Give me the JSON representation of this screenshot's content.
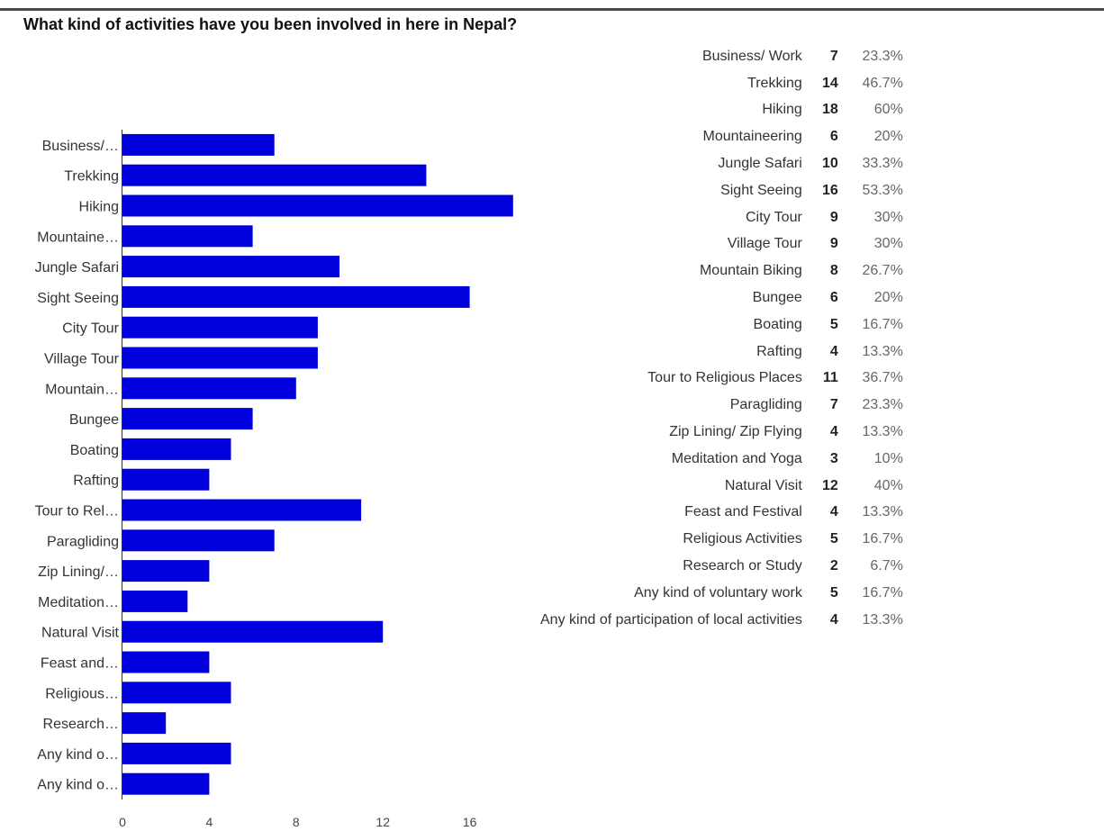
{
  "title": "What kind of activities have you been involved in here in Nepal?",
  "colors": {
    "bar": "#0000dd",
    "axis": "#333333"
  },
  "chart_data": {
    "type": "bar",
    "orientation": "horizontal",
    "title": "What kind of activities have you been involved in here in Nepal?",
    "categories": [
      "Business/…",
      "Trekking",
      "Hiking",
      "Mountaine…",
      "Jungle Safari",
      "Sight Seeing",
      "City Tour",
      "Village Tour",
      "Mountain…",
      "Bungee",
      "Boating",
      "Rafting",
      "Tour to Rel…",
      "Paragliding",
      "Zip Lining/…",
      "Meditation…",
      "Natural Visit",
      "Feast and…",
      "Religious…",
      "Research…",
      "Any kind o…",
      "Any kind o…"
    ],
    "values": [
      7,
      14,
      18,
      6,
      10,
      16,
      9,
      9,
      8,
      6,
      5,
      4,
      11,
      7,
      4,
      3,
      12,
      4,
      5,
      2,
      5,
      4
    ],
    "xlim": [
      0,
      18
    ],
    "xticks": [
      0,
      4,
      8,
      12,
      16
    ],
    "grid": false,
    "legend": "none"
  },
  "summary": [
    {
      "label": "Business/ Work",
      "count": "7",
      "percent": "23.3%"
    },
    {
      "label": "Trekking",
      "count": "14",
      "percent": "46.7%"
    },
    {
      "label": "Hiking",
      "count": "18",
      "percent": "60%"
    },
    {
      "label": "Mountaineering",
      "count": "6",
      "percent": "20%"
    },
    {
      "label": "Jungle Safari",
      "count": "10",
      "percent": "33.3%"
    },
    {
      "label": "Sight Seeing",
      "count": "16",
      "percent": "53.3%"
    },
    {
      "label": "City Tour",
      "count": "9",
      "percent": "30%"
    },
    {
      "label": "Village Tour",
      "count": "9",
      "percent": "30%"
    },
    {
      "label": "Mountain Biking",
      "count": "8",
      "percent": "26.7%"
    },
    {
      "label": "Bungee",
      "count": "6",
      "percent": "20%"
    },
    {
      "label": "Boating",
      "count": "5",
      "percent": "16.7%"
    },
    {
      "label": "Rafting",
      "count": "4",
      "percent": "13.3%"
    },
    {
      "label": "Tour to Religious Places",
      "count": "11",
      "percent": "36.7%"
    },
    {
      "label": "Paragliding",
      "count": "7",
      "percent": "23.3%"
    },
    {
      "label": "Zip Lining/ Zip Flying",
      "count": "4",
      "percent": "13.3%"
    },
    {
      "label": "Meditation and Yoga",
      "count": "3",
      "percent": "10%"
    },
    {
      "label": "Natural Visit",
      "count": "12",
      "percent": "40%"
    },
    {
      "label": "Feast and Festival",
      "count": "4",
      "percent": "13.3%"
    },
    {
      "label": "Religious Activities",
      "count": "5",
      "percent": "16.7%"
    },
    {
      "label": "Research or Study",
      "count": "2",
      "percent": "6.7%"
    },
    {
      "label": "Any kind of voluntary work",
      "count": "5",
      "percent": "16.7%"
    },
    {
      "label": "Any kind of participation of local activities",
      "count": "4",
      "percent": "13.3%"
    }
  ]
}
